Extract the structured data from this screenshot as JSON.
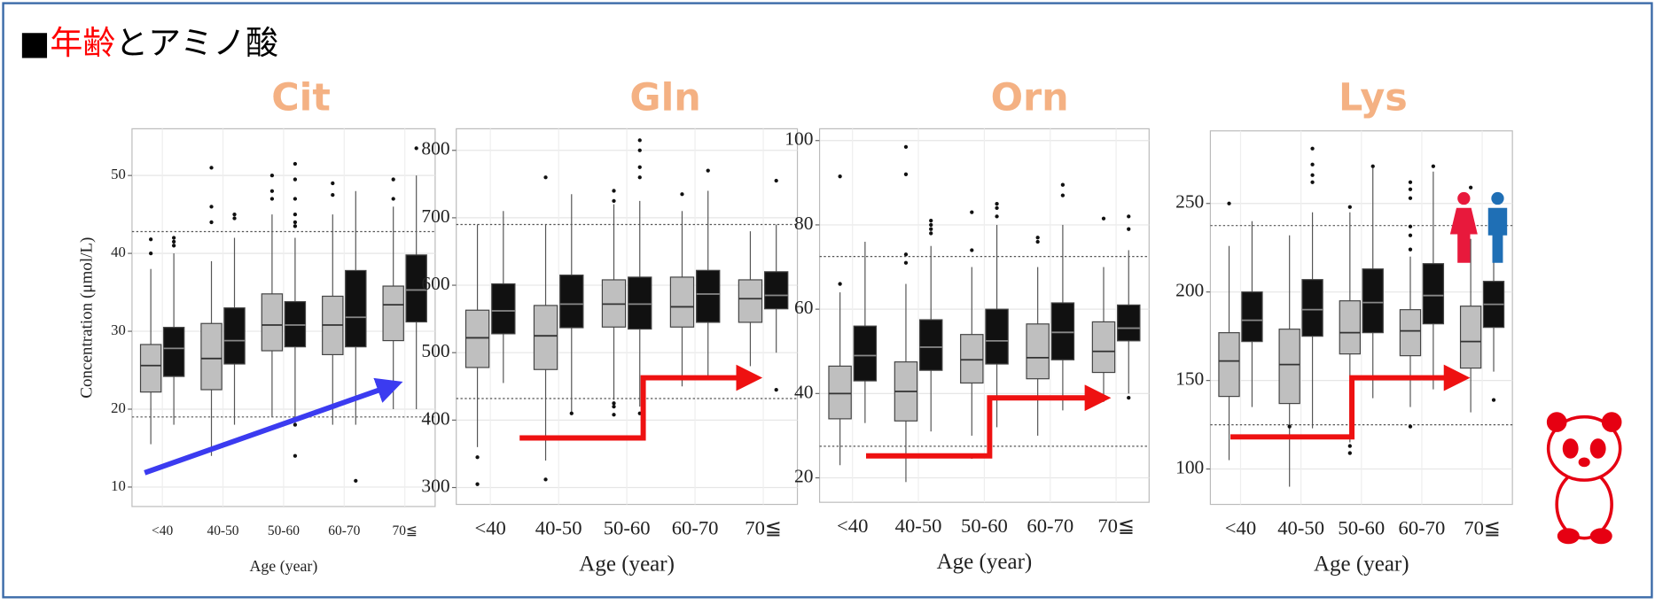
{
  "header": {
    "mark": "■",
    "title_red": "年齢",
    "title_rest": "とアミノ酸"
  },
  "chart_data": [
    {
      "type": "box",
      "title": "Cit",
      "x_label": "Age (year)",
      "y_label": "Concentration (μmol/L)",
      "categories": [
        "<40",
        "40-50",
        "50-60",
        "60-70",
        "70≦"
      ],
      "ylim": [
        7.5,
        56
      ],
      "yticks": [
        10,
        20,
        30,
        40,
        50
      ],
      "grid": true,
      "reference_lines": [
        42.8,
        19
      ],
      "series": [
        {
          "color": "#bfbfbf",
          "values": [
            {
              "min": 15.5,
              "q1": 22.2,
              "median": 25.6,
              "q3": 28.3,
              "max": 38,
              "outliers": [
                40,
                41.8
              ]
            },
            {
              "min": 14,
              "q1": 22.5,
              "median": 26.5,
              "q3": 31,
              "max": 39,
              "outliers": [
                44,
                46,
                51
              ]
            },
            {
              "min": 19,
              "q1": 27.5,
              "median": 30.8,
              "q3": 34.8,
              "max": 45,
              "outliers": [
                47,
                48,
                50
              ]
            },
            {
              "min": 18,
              "q1": 27,
              "median": 30.8,
              "q3": 34.5,
              "max": 45,
              "outliers": [
                47.5,
                49
              ]
            },
            {
              "min": 20,
              "q1": 28.8,
              "median": 33.4,
              "q3": 35.8,
              "max": 46,
              "outliers": [
                47,
                49.5
              ]
            }
          ]
        },
        {
          "color": "#111111",
          "values": [
            {
              "min": 18,
              "q1": 24.2,
              "median": 27.8,
              "q3": 30.5,
              "max": 40,
              "outliers": [
                41,
                41.5,
                42
              ]
            },
            {
              "min": 18,
              "q1": 25.8,
              "median": 28.8,
              "q3": 33,
              "max": 42,
              "outliers": [
                44.5,
                45
              ]
            },
            {
              "min": 18,
              "q1": 28,
              "median": 30.8,
              "q3": 33.8,
              "max": 42,
              "outliers": [
                43.5,
                44,
                45,
                47,
                49.5,
                51.5,
                18,
                14
              ]
            },
            {
              "min": 18,
              "q1": 28,
              "median": 31.8,
              "q3": 37.8,
              "max": 48,
              "outliers": [
                10.8
              ]
            },
            {
              "min": 20,
              "q1": 31.2,
              "median": 35.3,
              "q3": 39.8,
              "max": 50,
              "outliers": [
                53.5
              ]
            }
          ]
        }
      ]
    },
    {
      "type": "box",
      "title": "Gln",
      "x_label": "Age (year)",
      "categories": [
        "<40",
        "40-50",
        "50-60",
        "60-70",
        "70≦"
      ],
      "ylim": [
        275,
        832
      ],
      "yticks": [
        300,
        400,
        500,
        600,
        700,
        800
      ],
      "grid": true,
      "reference_lines": [
        690,
        432
      ],
      "series": [
        {
          "color": "#bfbfbf",
          "values": [
            {
              "min": 360,
              "q1": 478,
              "median": 522,
              "q3": 563,
              "max": 690,
              "outliers": [
                345,
                305
              ]
            },
            {
              "min": 340,
              "q1": 475,
              "median": 525,
              "q3": 570,
              "max": 690,
              "outliers": [
                760,
                312
              ]
            },
            {
              "min": 430,
              "q1": 538,
              "median": 572,
              "q3": 608,
              "max": 720,
              "outliers": [
                725,
                740,
                425,
                420,
                408
              ]
            },
            {
              "min": 450,
              "q1": 538,
              "median": 568,
              "q3": 612,
              "max": 710,
              "outliers": [
                735
              ]
            },
            {
              "min": 480,
              "q1": 545,
              "median": 580,
              "q3": 608,
              "max": 680,
              "outliers": []
            }
          ]
        },
        {
          "color": "#111111",
          "values": [
            {
              "min": 455,
              "q1": 528,
              "median": 562,
              "q3": 602,
              "max": 710,
              "outliers": []
            },
            {
              "min": 410,
              "q1": 537,
              "median": 572,
              "q3": 615,
              "max": 735,
              "outliers": [
                410
              ]
            },
            {
              "min": 420,
              "q1": 535,
              "median": 572,
              "q3": 612,
              "max": 725,
              "outliers": [
                760,
                775,
                800,
                815,
                410
              ]
            },
            {
              "min": 460,
              "q1": 545,
              "median": 587,
              "q3": 622,
              "max": 740,
              "outliers": [
                770
              ]
            },
            {
              "min": 500,
              "q1": 565,
              "median": 585,
              "q3": 620,
              "max": 690,
              "outliers": [
                755,
                445
              ]
            }
          ]
        }
      ]
    },
    {
      "type": "box",
      "title": "Orn",
      "x_label": "Age (year)",
      "categories": [
        "<40",
        "40-50",
        "50-60",
        "60-70",
        "70≦"
      ],
      "ylim": [
        14.2,
        102.8
      ],
      "yticks": [
        20,
        40,
        60,
        80,
        100
      ],
      "grid": true,
      "reference_lines": [
        72.5,
        27.5
      ],
      "series": [
        {
          "color": "#bfbfbf",
          "values": [
            {
              "min": 23,
              "q1": 34,
              "median": 40,
              "q3": 46.5,
              "max": 64,
              "outliers": [
                66,
                91.5
              ]
            },
            {
              "min": 19,
              "q1": 33.5,
              "median": 40.5,
              "q3": 47.5,
              "max": 66,
              "outliers": [
                71,
                73,
                92,
                98.5
              ]
            },
            {
              "min": 30,
              "q1": 42.5,
              "median": 48,
              "q3": 54,
              "max": 70,
              "outliers": [
                74,
                83,
                25
              ]
            },
            {
              "min": 30,
              "q1": 43.5,
              "median": 48.5,
              "q3": 56.5,
              "max": 70,
              "outliers": [
                76,
                77
              ]
            },
            {
              "min": 38,
              "q1": 45,
              "median": 50,
              "q3": 57,
              "max": 70,
              "outliers": [
                81.5
              ]
            }
          ]
        },
        {
          "color": "#111111",
          "values": [
            {
              "min": 33,
              "q1": 43,
              "median": 49,
              "q3": 56,
              "max": 76,
              "outliers": []
            },
            {
              "min": 31,
              "q1": 45.5,
              "median": 51,
              "q3": 57.5,
              "max": 75,
              "outliers": [
                78,
                79,
                80,
                81
              ]
            },
            {
              "min": 32,
              "q1": 47,
              "median": 52.5,
              "q3": 60,
              "max": 80,
              "outliers": [
                82,
                84,
                85
              ]
            },
            {
              "min": 36,
              "q1": 48,
              "median": 54.5,
              "q3": 61.5,
              "max": 80,
              "outliers": [
                87,
                89.5
              ]
            },
            {
              "min": 40,
              "q1": 52.5,
              "median": 55.5,
              "q3": 61,
              "max": 74,
              "outliers": [
                79,
                82,
                39
              ]
            }
          ]
        }
      ]
    },
    {
      "type": "box",
      "title": "Lys",
      "x_label": "Age (year)",
      "categories": [
        "<40",
        "40-50",
        "50-60",
        "60-70",
        "70≦"
      ],
      "ylim": [
        80,
        291
      ],
      "yticks": [
        100,
        150,
        200,
        250
      ],
      "grid": true,
      "reference_lines": [
        237.5,
        125
      ],
      "series": [
        {
          "color": "#bfbfbf",
          "values": [
            {
              "min": 105,
              "q1": 141,
              "median": 161,
              "q3": 177,
              "max": 226,
              "outliers": [
                250
              ]
            },
            {
              "min": 90,
              "q1": 137,
              "median": 159,
              "q3": 179,
              "max": 232,
              "outliers": [
                124
              ]
            },
            {
              "min": 115,
              "q1": 165,
              "median": 177,
              "q3": 195,
              "max": 245,
              "outliers": [
                248,
                109,
                113
              ]
            },
            {
              "min": 135,
              "q1": 164,
              "median": 178,
              "q3": 190,
              "max": 220,
              "outliers": [
                224,
                232,
                237,
                253,
                258,
                262,
                124
              ]
            },
            {
              "min": 132,
              "q1": 157,
              "median": 172,
              "q3": 192,
              "max": 230,
              "outliers": [
                259
              ]
            }
          ]
        },
        {
          "color": "#111111",
          "values": [
            {
              "min": 135,
              "q1": 172,
              "median": 184,
              "q3": 200,
              "max": 240,
              "outliers": []
            },
            {
              "min": 123,
              "q1": 175,
              "median": 190,
              "q3": 207,
              "max": 245,
              "outliers": [
                262,
                266,
                272,
                281
              ]
            },
            {
              "min": 140,
              "q1": 177,
              "median": 194,
              "q3": 213,
              "max": 270,
              "outliers": [
                271
              ]
            },
            {
              "min": 145,
              "q1": 182,
              "median": 198,
              "q3": 216,
              "max": 268,
              "outliers": [
                271
              ]
            },
            {
              "min": 155,
              "q1": 180,
              "median": 193,
              "q3": 206,
              "max": 230,
              "outliers": [
                139
              ]
            }
          ]
        }
      ]
    }
  ]
}
